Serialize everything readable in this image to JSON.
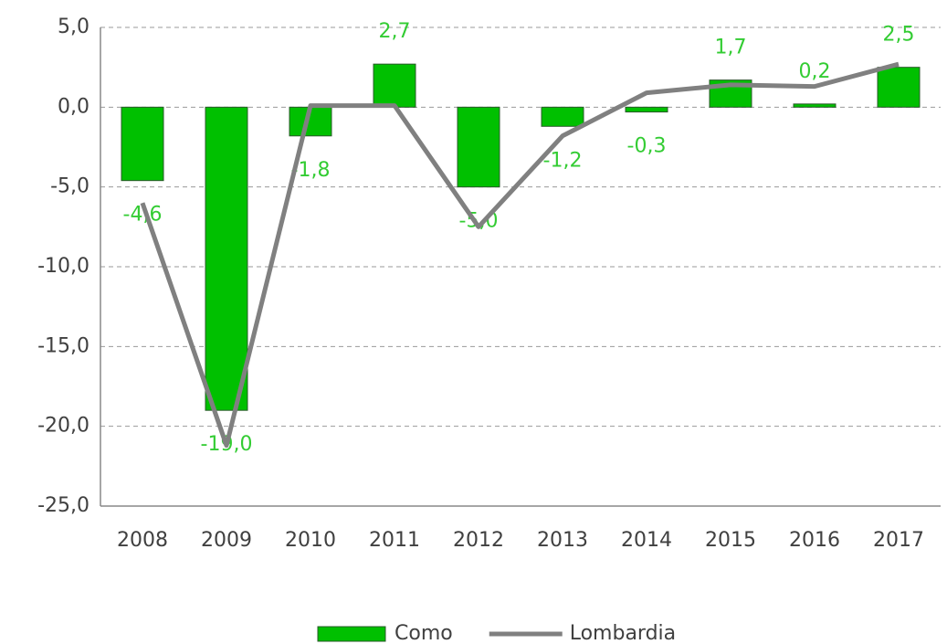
{
  "chart_data": {
    "type": "bar_line",
    "categories": [
      "2008",
      "2009",
      "2010",
      "2011",
      "2012",
      "2013",
      "2014",
      "2015",
      "2016",
      "2017"
    ],
    "series": [
      {
        "name": "Como",
        "type": "bar",
        "color": "#00c000",
        "values": [
          -4.6,
          -19.0,
          -1.8,
          2.7,
          -5.0,
          -1.2,
          -0.3,
          1.7,
          0.2,
          2.5
        ],
        "value_labels": [
          "-4,6",
          "-19,0",
          "-1,8",
          "2,7",
          "-5,0",
          "-1,2",
          "-0,3",
          "1,7",
          "0,2",
          "2,5"
        ],
        "label_color": "#33cc33"
      },
      {
        "name": "Lombardia",
        "type": "line",
        "color": "#808080",
        "values": [
          -6.0,
          -21.2,
          0.1,
          0.1,
          -7.5,
          -1.8,
          0.9,
          1.4,
          1.3,
          2.7
        ]
      }
    ],
    "ylim": [
      -25,
      5
    ],
    "yticks": [
      {
        "value": -25,
        "label": "-25,0"
      },
      {
        "value": -20,
        "label": "-20,0"
      },
      {
        "value": -15,
        "label": "-15,0"
      },
      {
        "value": -10,
        "label": "-10,0"
      },
      {
        "value": -5,
        "label": "-5,0"
      },
      {
        "value": 0,
        "label": "0,0"
      },
      {
        "value": 5,
        "label": "5,0"
      }
    ],
    "grid": true,
    "legend": "bottom"
  }
}
